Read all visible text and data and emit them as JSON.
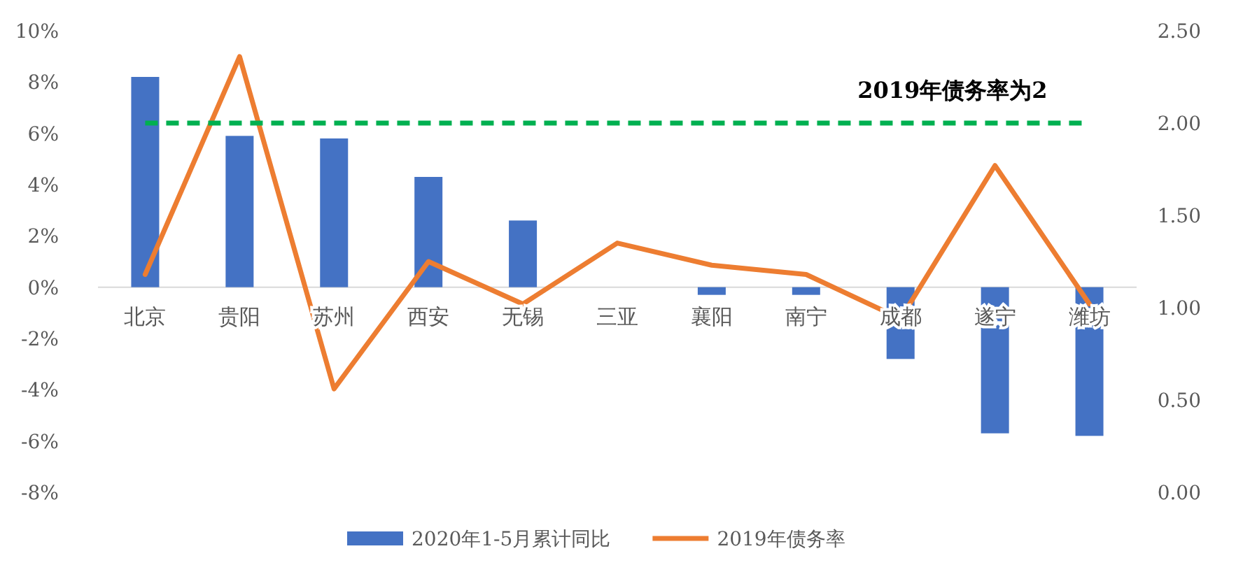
{
  "chart_data": {
    "type": "bar",
    "categories": [
      "北京",
      "贵阳",
      "苏州",
      "西安",
      "无锡",
      "三亚",
      "襄阳",
      "南宁",
      "成都",
      "遂宁",
      "潍坊"
    ],
    "series": [
      {
        "name": "2020年1-5月累计同比",
        "color": "#4472c4",
        "values": [
          8.2,
          5.9,
          5.8,
          4.3,
          2.6,
          0,
          -0.3,
          -0.3,
          -2.8,
          -5.7,
          -5.8
        ]
      },
      {
        "name": "2019年债务率",
        "type": "line",
        "axis": "y2",
        "color": "#ed7d31",
        "values": [
          1.18,
          2.36,
          0.56,
          1.25,
          1.02,
          1.35,
          1.23,
          1.18,
          0.94,
          1.77,
          1.02
        ]
      }
    ],
    "ylim": [
      -8,
      10
    ],
    "yticks": [
      {
        "value": -8,
        "label": "-8%"
      },
      {
        "value": -6,
        "label": "-6%"
      },
      {
        "value": -4,
        "label": "-4%"
      },
      {
        "value": -2,
        "label": "-2%"
      },
      {
        "value": 0,
        "label": "0%"
      },
      {
        "value": 2,
        "label": "2%"
      },
      {
        "value": 4,
        "label": "4%"
      },
      {
        "value": 6,
        "label": "6%"
      },
      {
        "value": 8,
        "label": "8%"
      },
      {
        "value": 10,
        "label": "10%"
      }
    ],
    "y2lim": [
      0,
      2.5
    ],
    "y2ticks": [
      {
        "value": 0,
        "label": "0.00"
      },
      {
        "value": 0.5,
        "label": "0.50"
      },
      {
        "value": 1,
        "label": "1.00"
      },
      {
        "value": 1.5,
        "label": "1.50"
      },
      {
        "value": 2,
        "label": "2.00"
      },
      {
        "value": 2.5,
        "label": "2.50"
      }
    ],
    "ref_lines": [
      {
        "axis": "y2",
        "value": 2,
        "label": "2019年债务率为2",
        "color": "#00b050",
        "line_style": "dashed"
      }
    ],
    "legend": "bottom",
    "grid": false
  }
}
